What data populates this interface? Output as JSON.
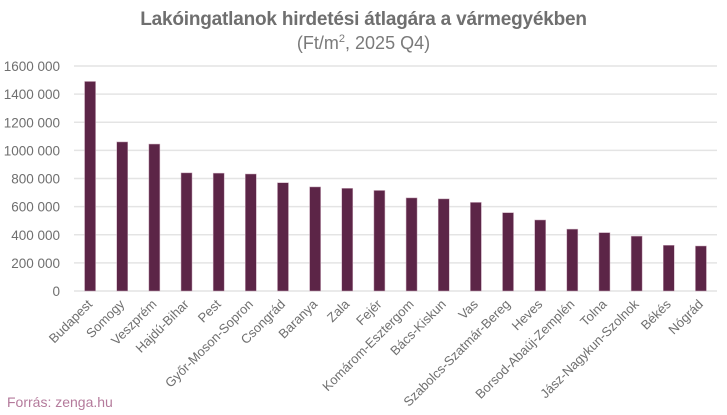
{
  "header": {
    "title": "Lakóingatlanok hirdetési átlagára a vármegyékben",
    "subtitle_pre": "(Ft/m",
    "subtitle_sup": "2",
    "subtitle_post": ", 2025 Q4)"
  },
  "footer": {
    "source": "Forrás: zenga.hu"
  },
  "colors": {
    "bar": "#5c2547",
    "grid": "#e4e4e4",
    "axis_text": "#6f6f6f",
    "source": "#b47a9b"
  },
  "chart_data": {
    "type": "bar",
    "title": "Lakóingatlanok hirdetési átlagára a vármegyékben",
    "subtitle": "(Ft/m², 2025 Q4)",
    "xlabel": "",
    "ylabel": "",
    "ylim": [
      0,
      1600000
    ],
    "yticks": [
      0,
      200000,
      400000,
      600000,
      800000,
      1000000,
      1200000,
      1400000,
      1600000
    ],
    "ytick_labels": [
      "0",
      "200 000",
      "400 000",
      "600 000",
      "800 000",
      "1000 000",
      "1200 000",
      "1400 000",
      "1600 000"
    ],
    "grid": true,
    "legend": null,
    "categories": [
      "Budapest",
      "Somogy",
      "Veszprém",
      "Hajdú-Bihar",
      "Pest",
      "Győr-Moson-Sopron",
      "Csongrád",
      "Baranya",
      "Zala",
      "Fejér",
      "Komárom-Esztergom",
      "Bács-Kiskun",
      "Vas",
      "Szabolcs-Szatmár-Bereg",
      "Heves",
      "Borsod-Abaúj-Zemplén",
      "Tolna",
      "Jász-Nagykun-Szolnok",
      "Békés",
      "Nógrád"
    ],
    "values": [
      1490000,
      1060000,
      1045000,
      840000,
      838000,
      832000,
      770000,
      740000,
      730000,
      715000,
      662000,
      655000,
      630000,
      557000,
      505000,
      440000,
      415000,
      390000,
      325000,
      320000
    ]
  }
}
